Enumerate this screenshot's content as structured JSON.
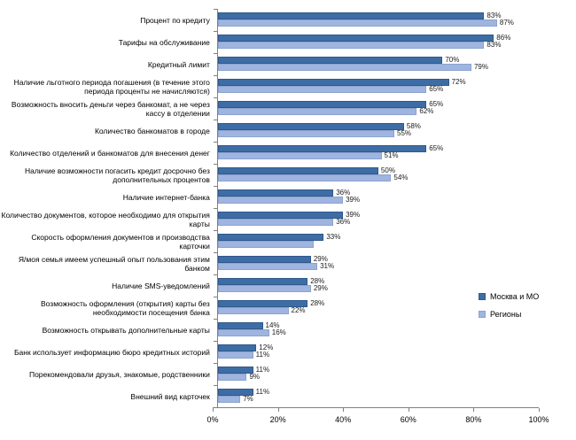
{
  "chart_data": {
    "type": "bar",
    "orientation": "horizontal",
    "title": "",
    "xlabel": "",
    "ylabel": "",
    "xlim": [
      0,
      100
    ],
    "grid": false,
    "legend_position": "right",
    "x_ticks": [
      "0%",
      "20%",
      "40%",
      "60%",
      "80%",
      "100%"
    ],
    "categories": [
      "Процент по кредиту",
      "Тарифы на обслуживание",
      "Кредитный лимит",
      "Наличие льготного периода погашения (в течение этого периода проценты не начисляются)",
      "Возможность вносить деньги через банкомат, а не через кассу в отделении",
      "Количество банкоматов в городе",
      "Количество отделений и банкоматов для внесения денег",
      "Наличие возможности погасить кредит досрочно без дополнительных процентов",
      "Наличие интернет-банка",
      "Количество документов, которое необходимо для открытия карты",
      "Скорость оформления документов и производства карточки",
      "Я/моя семья имеем успешный опыт пользования этим банком",
      "Наличие SMS-уведомлений",
      "Возможность оформления (открытия) карты без необходимости посещения банка",
      "Возможность открывать дополнительные карты",
      "Банк использует информацию бюро кредитных историй",
      "Порекомендовали друзья, знакомые, родственники",
      "Внешний вид карточек"
    ],
    "series": [
      {
        "name": "Москва и МО",
        "color": "#3E6DA5",
        "border_color": "#30588C",
        "values": [
          83,
          86,
          70,
          72,
          65,
          58,
          65,
          50,
          36,
          39,
          33,
          29,
          28,
          28,
          14,
          12,
          11,
          11
        ],
        "labels": [
          "83%",
          "86%",
          "70%",
          "72%",
          "65%",
          "58%",
          "65%",
          "50%",
          "36%",
          "39%",
          "33%",
          "29%",
          "28%",
          "28%",
          "14%",
          "12%",
          "11%",
          "11%"
        ]
      },
      {
        "name": "Регионы",
        "color": "#9FB4DF",
        "border_color": "#8CA3CF",
        "values": [
          87,
          83,
          79,
          65,
          62,
          55,
          51,
          54,
          39,
          36,
          30,
          31,
          29,
          22,
          16,
          11,
          9,
          7
        ],
        "labels": [
          "87%",
          "83%",
          "79%",
          "65%",
          "62%",
          "55%",
          "51%",
          "54%",
          "39%",
          "36%",
          "",
          "31%",
          "29%",
          "22%",
          "16%",
          "11%",
          "9%",
          "7%"
        ]
      }
    ],
    "axis_color": "#808080"
  }
}
